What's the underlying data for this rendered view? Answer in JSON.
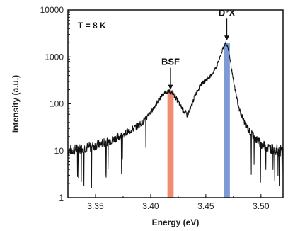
{
  "chart_data": {
    "type": "line",
    "xlabel": "Energy (eV)",
    "ylabel": "Intensity (a.u.)",
    "xlim": [
      3.325,
      3.52
    ],
    "ylim": [
      1,
      10000
    ],
    "yscale": "log",
    "x_ticks": [
      3.35,
      3.4,
      3.45,
      3.5
    ],
    "x_tick_labels": [
      "3.35",
      "3.40",
      "3.45",
      "3.50"
    ],
    "y_ticks": [
      1,
      10,
      100,
      1000,
      10000
    ],
    "y_tick_labels": [
      "1",
      "10",
      "100",
      "1000",
      "10000"
    ],
    "condition_label": "T = 8 K",
    "series": [
      {
        "color": "#111111",
        "x": [
          3.325,
          3.335,
          3.345,
          3.355,
          3.365,
          3.375,
          3.385,
          3.395,
          3.4,
          3.405,
          3.41,
          3.415,
          3.42,
          3.425,
          3.43,
          3.433,
          3.436,
          3.44,
          3.445,
          3.45,
          3.455,
          3.46,
          3.463,
          3.466,
          3.468,
          3.47,
          3.472,
          3.475,
          3.48,
          3.485,
          3.49,
          3.495,
          3.5,
          3.505,
          3.51,
          3.515,
          3.52
        ],
        "y": [
          10,
          11,
          12,
          14,
          17,
          22,
          30,
          45,
          65,
          100,
          150,
          185,
          170,
          110,
          70,
          58,
          75,
          150,
          250,
          320,
          400,
          650,
          1000,
          1600,
          2000,
          1600,
          900,
          300,
          80,
          40,
          25,
          18,
          14,
          12,
          11,
          10,
          10
        ]
      }
    ],
    "highlights": [
      {
        "label": "BSF",
        "x_center": 3.418,
        "color": "#f08060"
      },
      {
        "label": "D°X",
        "x_center": 3.469,
        "color": "#6f8fd0"
      }
    ],
    "annotations": [
      {
        "text": "BSF",
        "x": 3.418,
        "y": 180
      },
      {
        "text": "D°X",
        "x": 3.469,
        "y": 2000
      }
    ]
  }
}
